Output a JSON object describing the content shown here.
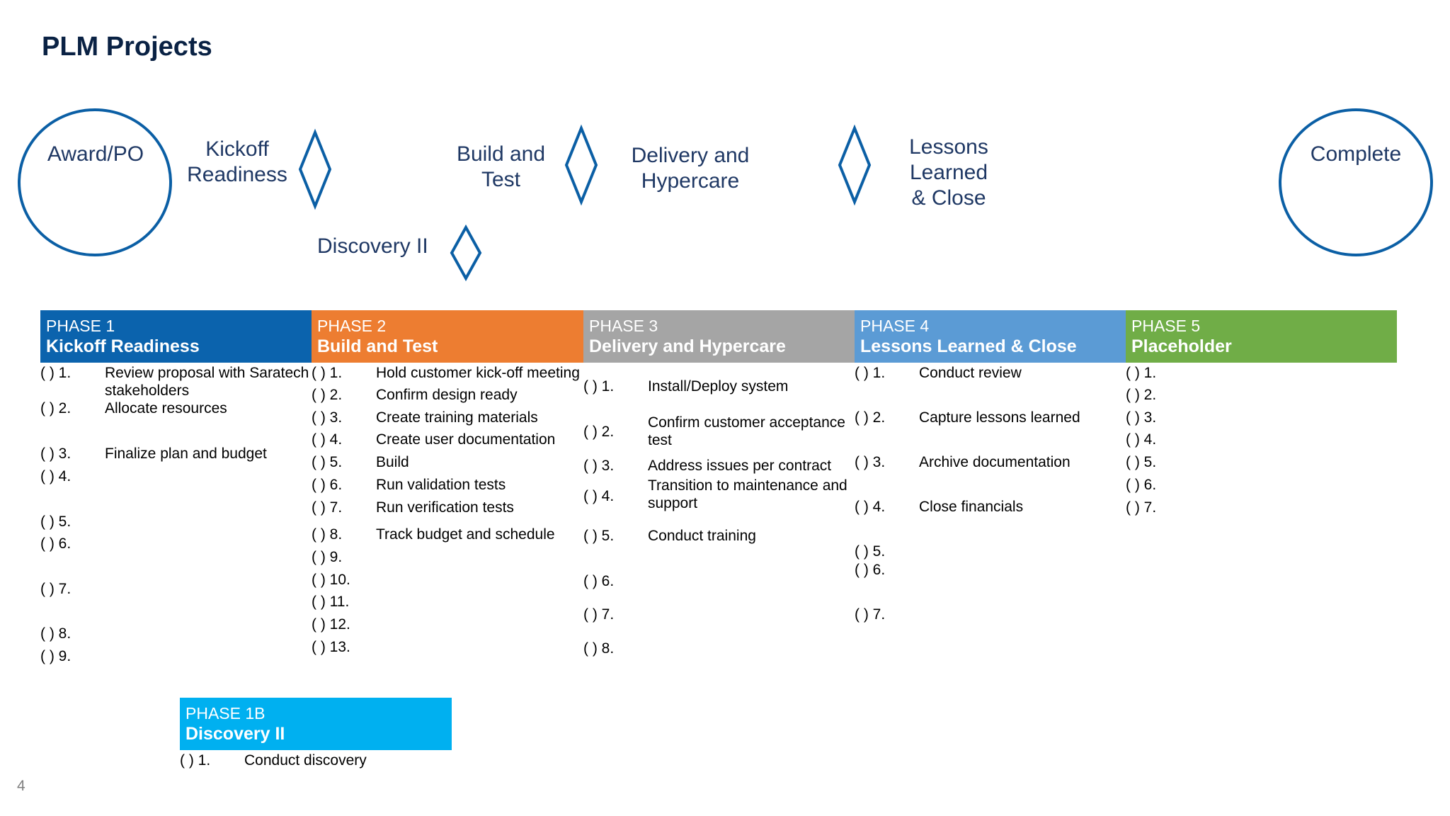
{
  "title": "PLM Projects",
  "page_number": "4",
  "milestones": {
    "award": "Award/PO",
    "kickoff_line1": "Kickoff",
    "kickoff_line2": "Readiness",
    "build_line1": "Build and",
    "build_line2": "Test",
    "delivery_line1": "Delivery and",
    "delivery_line2": "Hypercare",
    "lessons_line1": "Lessons",
    "lessons_line2": "Learned",
    "lessons_line3": "& Close",
    "discovery": "Discovery II",
    "complete": "Complete"
  },
  "colors": {
    "phase1": "#0b63ad",
    "phase2": "#ed7d31",
    "phase3": "#a5a5a5",
    "phase4": "#5b9bd5",
    "phase5": "#70ad47",
    "phase1b": "#00b0f0",
    "milestone_stroke": "#0b5fa5"
  },
  "phases": {
    "p1": {
      "number": "PHASE 1",
      "name": "Kickoff Readiness",
      "items": [
        {
          "check": "(  ) 1.",
          "text": "Review proposal with Saratech stakeholders"
        },
        {
          "check": "(  ) 2.",
          "text": "Allocate resources"
        },
        {
          "check": "(  ) 3.",
          "text": "Finalize plan and budget"
        },
        {
          "check": "(  ) 4.",
          "text": ""
        },
        {
          "check": "(  ) 5.",
          "text": ""
        },
        {
          "check": "(  ) 6.",
          "text": ""
        },
        {
          "check": "(  ) 7.",
          "text": ""
        },
        {
          "check": "(  ) 8.",
          "text": ""
        },
        {
          "check": "(  ) 9.",
          "text": ""
        }
      ]
    },
    "p2": {
      "number": "PHASE 2",
      "name": "Build and Test",
      "items": [
        {
          "check": "(  ) 1.",
          "text": "Hold customer kick-off meeting"
        },
        {
          "check": "(  ) 2.",
          "text": "Confirm design ready"
        },
        {
          "check": "(  ) 3.",
          "text": "Create training materials"
        },
        {
          "check": "(  ) 4.",
          "text": "Create user documentation"
        },
        {
          "check": "(  ) 5.",
          "text": "Build"
        },
        {
          "check": "(  ) 6.",
          "text": "Run validation tests"
        },
        {
          "check": "(  ) 7.",
          "text": "Run verification tests"
        },
        {
          "check": "(  ) 8.",
          "text": "Track budget and schedule"
        },
        {
          "check": "(  ) 9.",
          "text": ""
        },
        {
          "check": "(  ) 10.",
          "text": ""
        },
        {
          "check": "(  ) 11.",
          "text": ""
        },
        {
          "check": "(  ) 12.",
          "text": ""
        },
        {
          "check": "(  ) 13.",
          "text": ""
        }
      ]
    },
    "p3": {
      "number": "PHASE 3",
      "name": "Delivery and Hypercare",
      "items": [
        {
          "check": "(  ) 1.",
          "text": "Install/Deploy system"
        },
        {
          "check": "(  ) 2.",
          "text": "Confirm customer acceptance test"
        },
        {
          "check": "(  ) 3.",
          "text": "Address issues per contract"
        },
        {
          "check": "(  ) 4.",
          "text": "Transition to maintenance and support"
        },
        {
          "check": "(  ) 5.",
          "text": "Conduct training"
        },
        {
          "check": "(  ) 6.",
          "text": ""
        },
        {
          "check": "(  ) 7.",
          "text": ""
        },
        {
          "check": "(  ) 8.",
          "text": ""
        }
      ]
    },
    "p4": {
      "number": "PHASE 4",
      "name": "Lessons Learned & Close",
      "items": [
        {
          "check": "(  ) 1.",
          "text": "Conduct review"
        },
        {
          "check": "(  ) 2.",
          "text": "Capture lessons learned"
        },
        {
          "check": "(  ) 3.",
          "text": "Archive documentation"
        },
        {
          "check": "(  ) 4.",
          "text": "Close financials"
        },
        {
          "check": "(  ) 5.",
          "text": ""
        },
        {
          "check": "(  ) 6.",
          "text": ""
        },
        {
          "check": "(  ) 7.",
          "text": ""
        }
      ]
    },
    "p5": {
      "number": "PHASE 5",
      "name": "Placeholder",
      "items": [
        {
          "check": "(  ) 1.",
          "text": ""
        },
        {
          "check": "(  ) 2.",
          "text": ""
        },
        {
          "check": "(  ) 3.",
          "text": ""
        },
        {
          "check": "(  ) 4.",
          "text": ""
        },
        {
          "check": "(  ) 5.",
          "text": ""
        },
        {
          "check": "(  ) 6.",
          "text": ""
        },
        {
          "check": "(  ) 7.",
          "text": ""
        }
      ]
    },
    "p1b": {
      "number": "PHASE 1B",
      "name": "Discovery II",
      "items": [
        {
          "check": "(  ) 1.",
          "text": "Conduct discovery"
        }
      ]
    }
  }
}
